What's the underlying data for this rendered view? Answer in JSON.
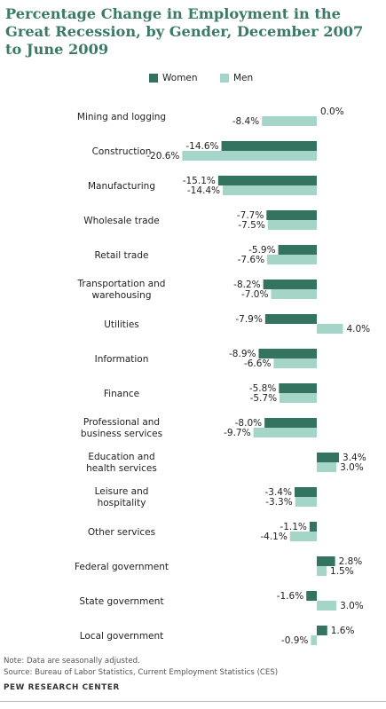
{
  "chart_data": {
    "type": "bar",
    "orientation": "horizontal",
    "title": "Percentage Change in Employment in the Great Recession, by Gender, December 2007 to June 2009",
    "categories": [
      "Mining and logging",
      "Construction",
      "Manufacturing",
      "Wholesale trade",
      "Retail trade",
      "Transportation and warehousing",
      "Utilities",
      "Information",
      "Finance",
      "Professional and business services",
      "Education and health services",
      "Leisure and hospitality",
      "Other services",
      "Federal government",
      "State government",
      "Local government"
    ],
    "series": [
      {
        "name": "Women",
        "color": "#33735f",
        "values": [
          0.0,
          -14.6,
          -15.1,
          -7.7,
          -5.9,
          -8.2,
          -7.9,
          -8.9,
          -5.8,
          -8.0,
          3.4,
          -3.4,
          -1.1,
          2.8,
          -1.6,
          1.6
        ]
      },
      {
        "name": "Men",
        "color": "#a5d5c8",
        "values": [
          -8.4,
          -20.6,
          -14.4,
          -7.5,
          -7.6,
          -7.0,
          4.0,
          -6.6,
          -5.7,
          -9.7,
          3.0,
          -3.3,
          -4.1,
          1.5,
          3.0,
          -0.9
        ]
      }
    ],
    "legend_placement": "top",
    "value_suffix": "%",
    "grid": false
  },
  "footer": {
    "note": "Note: Data are seasonally adjusted.",
    "source": "Source: Bureau of Labor Statistics, Current Employment Statistics (CES)",
    "brand": "PEW RESEARCH CENTER"
  }
}
